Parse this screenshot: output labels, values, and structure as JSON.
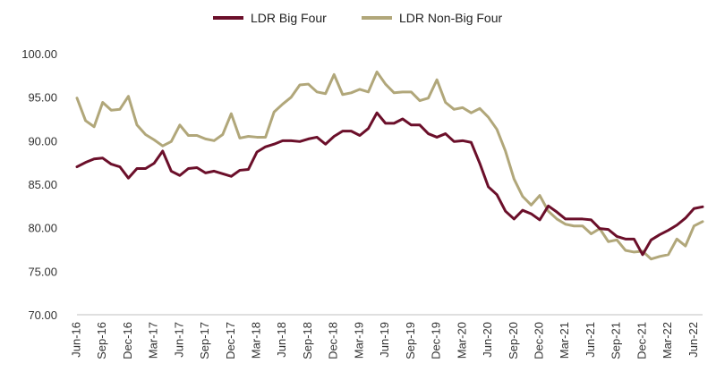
{
  "chart_data": {
    "type": "line",
    "title": "",
    "xlabel": "",
    "ylabel": "",
    "ylim": [
      70,
      100
    ],
    "yticks": [
      "70.00",
      "75.00",
      "80.00",
      "85.00",
      "90.00",
      "95.00",
      "100.00"
    ],
    "grid": false,
    "legend_position": "top-center",
    "x": [
      "Jun-16",
      "Jul-16",
      "Aug-16",
      "Sep-16",
      "Oct-16",
      "Nov-16",
      "Dec-16",
      "Jan-17",
      "Feb-17",
      "Mar-17",
      "Apr-17",
      "May-17",
      "Jun-17",
      "Jul-17",
      "Aug-17",
      "Sep-17",
      "Oct-17",
      "Nov-17",
      "Dec-17",
      "Jan-18",
      "Feb-18",
      "Mar-18",
      "Apr-18",
      "May-18",
      "Jun-18",
      "Jul-18",
      "Aug-18",
      "Sep-18",
      "Oct-18",
      "Nov-18",
      "Dec-18",
      "Jan-19",
      "Feb-19",
      "Mar-19",
      "Apr-19",
      "May-19",
      "Jun-19",
      "Jul-19",
      "Aug-19",
      "Sep-19",
      "Oct-19",
      "Nov-19",
      "Dec-19",
      "Jan-20",
      "Feb-20",
      "Mar-20",
      "Apr-20",
      "May-20",
      "Jun-20",
      "Jul-20",
      "Aug-20",
      "Sep-20",
      "Oct-20",
      "Nov-20",
      "Dec-20",
      "Jan-21",
      "Feb-21",
      "Mar-21",
      "Apr-21",
      "May-21",
      "Jun-21",
      "Jul-21",
      "Aug-21",
      "Sep-21",
      "Oct-21",
      "Nov-21",
      "Dec-21",
      "Jan-22",
      "Feb-22",
      "Mar-22",
      "Apr-22",
      "May-22",
      "Jun-22",
      "Jul-22"
    ],
    "xtick_labels": [
      "Jun-16",
      "Sep-16",
      "Dec-16",
      "Mar-17",
      "Jun-17",
      "Sep-17",
      "Dec-17",
      "Mar-18",
      "Jun-18",
      "Sep-18",
      "Dec-18",
      "Mar-19",
      "Jun-19",
      "Sep-19",
      "Dec-19",
      "Mar-20",
      "Jun-20",
      "Sep-20",
      "Dec-20",
      "Mar-21",
      "Jun-21",
      "Sep-21",
      "Dec-21",
      "Mar-22",
      "Jun-22"
    ],
    "series": [
      {
        "name": "LDR Big Four",
        "color": "#6b0f2a",
        "values": [
          87.0,
          87.5,
          87.9,
          88.0,
          87.3,
          87.0,
          85.7,
          86.8,
          86.8,
          87.4,
          88.8,
          86.5,
          86.0,
          86.8,
          86.9,
          86.3,
          86.5,
          86.2,
          85.9,
          86.6,
          86.7,
          88.7,
          89.3,
          89.6,
          90.0,
          90.0,
          89.9,
          90.2,
          90.4,
          89.6,
          90.5,
          91.1,
          91.1,
          90.6,
          91.4,
          93.2,
          92.0,
          92.0,
          92.5,
          91.8,
          91.8,
          90.8,
          90.4,
          90.8,
          89.9,
          90.0,
          89.8,
          87.4,
          84.7,
          83.8,
          81.9,
          81.0,
          82.0,
          81.6,
          80.9,
          82.5,
          81.8,
          81.0,
          81.0,
          81.0,
          80.9,
          79.9,
          79.8,
          79.0,
          78.7,
          78.7,
          76.9,
          78.6,
          79.2,
          79.7,
          80.3,
          81.1,
          82.2,
          82.4
        ]
      },
      {
        "name": "LDR Non-Big Four",
        "color": "#b1a77a",
        "values": [
          94.9,
          92.3,
          91.6,
          94.4,
          93.5,
          93.6,
          95.1,
          91.8,
          90.7,
          90.1,
          89.4,
          89.9,
          91.8,
          90.6,
          90.6,
          90.2,
          90.0,
          90.7,
          93.1,
          90.3,
          90.5,
          90.4,
          90.4,
          93.3,
          94.2,
          95.0,
          96.4,
          96.5,
          95.6,
          95.4,
          97.6,
          95.3,
          95.5,
          95.9,
          95.6,
          97.9,
          96.5,
          95.5,
          95.6,
          95.6,
          94.6,
          94.9,
          97.0,
          94.4,
          93.6,
          93.8,
          93.2,
          93.7,
          92.7,
          91.3,
          88.8,
          85.6,
          83.6,
          82.6,
          83.7,
          81.9,
          81.0,
          80.4,
          80.2,
          80.2,
          79.3,
          79.9,
          78.4,
          78.6,
          77.4,
          77.2,
          77.3,
          76.4,
          76.7,
          76.9,
          78.7,
          77.9,
          80.2,
          80.7
        ]
      }
    ]
  }
}
